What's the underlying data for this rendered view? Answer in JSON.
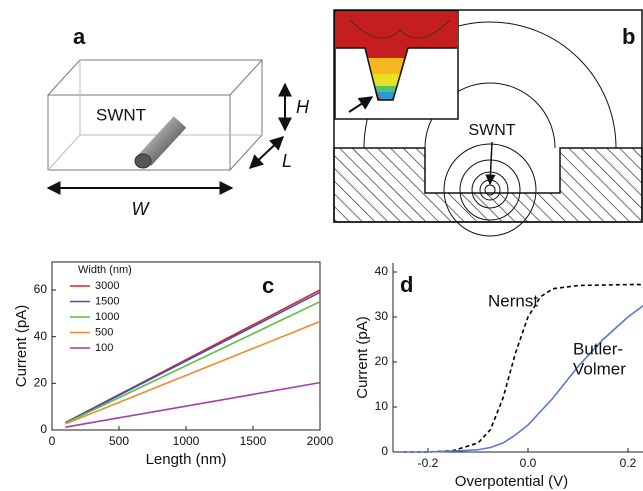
{
  "panel_a": {
    "label": "a",
    "tube_label": "SWNT",
    "height_label": "H",
    "length_label": "L",
    "width_label": "W"
  },
  "panel_b": {
    "label": "b",
    "tube_label": "SWNT"
  },
  "chart_data": [
    {
      "type": "line",
      "panel_label": "c",
      "x_label": "Length (nm)",
      "y_label": "Current (pA)",
      "legend_title": "Width (nm)",
      "x": [
        100,
        2000
      ],
      "xlim": [
        0,
        2000
      ],
      "ylim": [
        0,
        72
      ],
      "xticks": [
        0,
        500,
        1000,
        1500,
        2000
      ],
      "yticks": [
        0,
        20,
        40,
        60
      ],
      "series": [
        {
          "name": "3000",
          "color": "#d62728",
          "values": [
            3.2,
            60
          ]
        },
        {
          "name": "1500",
          "color": "#3a52c8",
          "values": [
            3.1,
            59
          ]
        },
        {
          "name": "1000",
          "color": "#5cbf3c",
          "values": [
            2.9,
            55
          ]
        },
        {
          "name": "500",
          "color": "#f08a2c",
          "values": [
            2.6,
            46.5
          ]
        },
        {
          "name": "100",
          "color": "#a63ca8",
          "values": [
            1.2,
            20.3
          ]
        }
      ]
    },
    {
      "type": "line",
      "panel_label": "d",
      "x_label": "Overpotential (V)",
      "y_label": "Current (pA)",
      "x": [
        -0.25,
        -0.2,
        -0.15,
        -0.1,
        -0.075,
        -0.05,
        -0.025,
        0,
        0.025,
        0.05,
        0.1,
        0.15,
        0.2,
        0.23
      ],
      "xlim": [
        -0.27,
        0.23
      ],
      "ylim": [
        0,
        42
      ],
      "xticks": [
        -0.2,
        {
          "value": 0,
          "label": "0.0"
        },
        0.2
      ],
      "yticks": [
        0,
        10,
        20,
        30,
        40
      ],
      "series": [
        {
          "name": "Nernst",
          "color": "#000000",
          "dashed": true,
          "values": [
            0,
            0,
            0.3,
            2,
            5,
            12,
            22,
            30,
            34.5,
            36.3,
            37,
            37.1,
            37.2,
            37.2
          ]
        },
        {
          "name_lines": [
            "Butler-",
            "Volmer"
          ],
          "color": "#5b78d0",
          "dashed": false,
          "values": [
            0,
            0,
            0.2,
            0.5,
            1,
            2,
            3.8,
            6,
            9,
            12,
            19,
            25,
            30,
            32.5
          ]
        }
      ]
    }
  ]
}
